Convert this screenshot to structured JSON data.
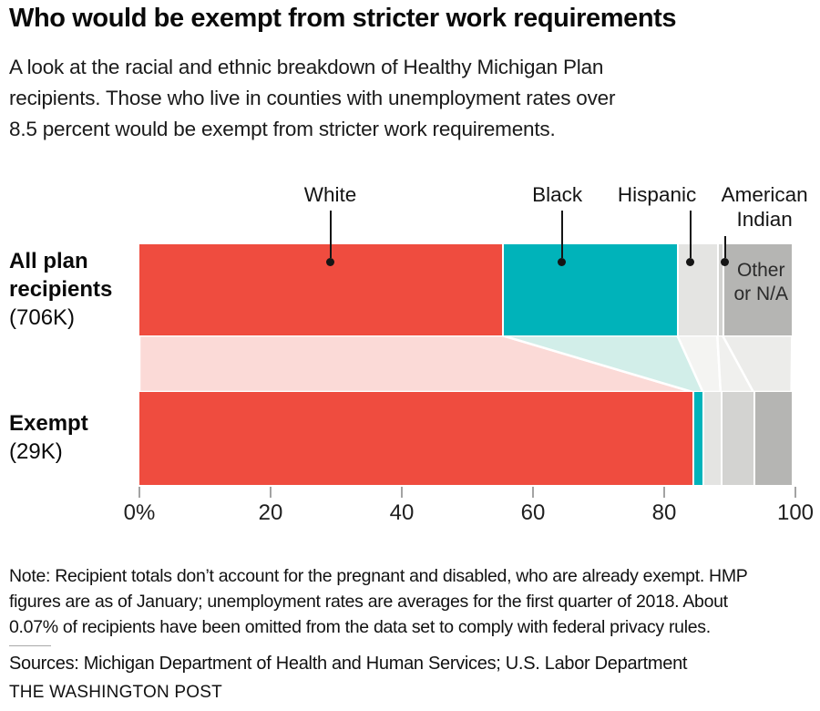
{
  "header": {
    "title": "Who would be exempt from stricter work requirements",
    "subtitle_lines": [
      "A look at the racial and ethnic breakdown of Healthy Michigan Plan",
      "recipients. Those who live in counties with unemployment rates over",
      "8.5 percent would be exempt from stricter work requirements."
    ]
  },
  "chart_data": {
    "type": "bar",
    "variant": "horizontal-stacked-with-flow",
    "unit": "percent",
    "categories": [
      "White",
      "Black",
      "Hispanic",
      "American Indian",
      "Other or N/A"
    ],
    "colors": [
      "#ef4c3f",
      "#00b3ba",
      "#e4e4e2",
      "#d3d3d1",
      "#b5b5b3"
    ],
    "flow_colors": [
      "#fbdad7",
      "#d2eee9",
      "#f4f4f2",
      "#f0f0ee",
      "#ececea"
    ],
    "series": [
      {
        "name": "All plan recipients",
        "label_lines": [
          "All plan",
          "recipients"
        ],
        "sublabel": "(706K)",
        "values": [
          55.3,
          26.7,
          6.1,
          0.8,
          10.6
        ]
      },
      {
        "name": "Exempt",
        "label_lines": [
          "Exempt"
        ],
        "sublabel": "(29K)",
        "values": [
          84.3,
          1.6,
          2.7,
          5.0,
          5.8
        ]
      }
    ],
    "x_axis": {
      "range": [
        0,
        100
      ],
      "values": [
        0,
        20,
        40,
        60,
        80,
        100
      ],
      "tick_labels": [
        "0%",
        "20",
        "40",
        "60",
        "80",
        "100"
      ],
      "tick_color": "#a3a3a3",
      "grid": false
    },
    "legend_position": "callouts-above-top-bar",
    "callouts": [
      {
        "label": "White",
        "lines": [
          "White"
        ],
        "anchor_pct": 29.1,
        "label_pct": 29.1,
        "line_top": 231
      },
      {
        "label": "Black",
        "lines": [
          "Black"
        ],
        "anchor_pct": 64.4,
        "label_pct": 63.7,
        "line_top": 231
      },
      {
        "label": "Hispanic",
        "lines": [
          "Hispanic"
        ],
        "anchor_pct": 84.0,
        "label_pct": 78.9,
        "line_top": 231
      },
      {
        "label": "American Indian",
        "lines": [
          "American",
          "Indian"
        ],
        "anchor_pct": 89.3,
        "label_pct": 95.3,
        "line_top": 259
      }
    ],
    "inline_label": {
      "lines": [
        "Other",
        "or N/A"
      ],
      "series": 0,
      "segment": 4
    }
  },
  "footer": {
    "note_lines": [
      "Note: Recipient totals don’t account for the pregnant and disabled, who are already exempt. HMP",
      "figures are as of January; unemployment rates are averages for the first quarter of 2018. About",
      "0.07% of recipients have been omitted from the data set to comply with federal privacy rules."
    ],
    "sources": "Sources: Michigan Department of Health and Human Services; U.S. Labor Department",
    "credit": "THE WASHINGTON POST"
  }
}
